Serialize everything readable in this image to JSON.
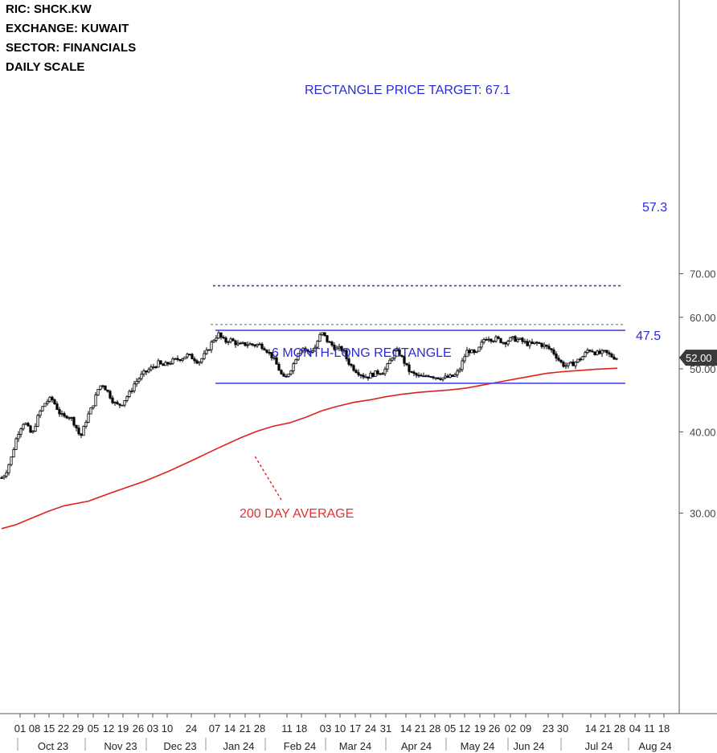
{
  "header": {
    "ric": "RIC:  SHCK.KW",
    "exchange": "EXCHANGE:  KUWAIT",
    "sector": "SECTOR:  FINANCIALS",
    "scale": "DAILY SCALE"
  },
  "annotations": {
    "target": "RECTANGLE PRICE TARGET: 67.1",
    "rect_label": "6 MONTH-LONG RECTANGLE",
    "ma_label": "200 DAY AVERAGE",
    "upper_value": "57.3",
    "lower_value": "47.5",
    "last_price": "52.00"
  },
  "colors": {
    "candle": "#000000",
    "pattern_line": "#4a4ae8",
    "target_line": "#3c3cd8",
    "moving_average": "#e02020",
    "grey_dotted": "#999999",
    "price_badge": "#3a3a3a"
  },
  "chart_data": {
    "type": "candlestick",
    "y_scale": "log",
    "ylim": [
      27,
      78
    ],
    "y_ticks": [
      {
        "value": 30,
        "label": "30.00"
      },
      {
        "value": 40,
        "label": "40.00"
      },
      {
        "value": 50,
        "label": "50.00"
      },
      {
        "value": 60,
        "label": "60.00"
      },
      {
        "value": 70,
        "label": "70.00"
      }
    ],
    "x_day_labels": [
      "01",
      "08",
      "15",
      "22",
      "29",
      "05",
      "12",
      "19",
      "26",
      "03",
      "10",
      "24",
      "07",
      "14",
      "21",
      "28",
      "11",
      "18",
      "03",
      "10",
      "17",
      "24",
      "31",
      "14",
      "21",
      "28",
      "05",
      "12",
      "19",
      "26",
      "02",
      "09",
      "23",
      "30",
      "14",
      "21",
      "28",
      "04",
      "11",
      "18"
    ],
    "x_month_labels": [
      "Oct 23",
      "Nov 23",
      "Dec 23",
      "Jan 24",
      "Feb 24",
      "Mar 24",
      "Apr 24",
      "May 24",
      "Jun 24",
      "Jul 24",
      "Aug 24"
    ],
    "close_path": [
      [
        0,
        34.0
      ],
      [
        5,
        34.6
      ],
      [
        12,
        36.5
      ],
      [
        18,
        39
      ],
      [
        22,
        40.3
      ],
      [
        28,
        41.5
      ],
      [
        33,
        40.5
      ],
      [
        38,
        39.5
      ],
      [
        43,
        41.5
      ],
      [
        48,
        43
      ],
      [
        55,
        44.5
      ],
      [
        62,
        45
      ],
      [
        66,
        44.2
      ],
      [
        72,
        42.8
      ],
      [
        77,
        42
      ],
      [
        82,
        42.5
      ],
      [
        88,
        41.8
      ],
      [
        93,
        40.6
      ],
      [
        98,
        39.2
      ],
      [
        102,
        40.5
      ],
      [
        106,
        42
      ],
      [
        110,
        43
      ],
      [
        115,
        44.5
      ],
      [
        120,
        46.5
      ],
      [
        125,
        47.5
      ],
      [
        130,
        46.5
      ],
      [
        136,
        45.2
      ],
      [
        140,
        44.3
      ],
      [
        145,
        43.9
      ],
      [
        150,
        44.3
      ],
      [
        155,
        45.2
      ],
      [
        160,
        46
      ],
      [
        165,
        47.4
      ],
      [
        170,
        48.2
      ],
      [
        175,
        49
      ],
      [
        180,
        49.5
      ],
      [
        185,
        50
      ],
      [
        190,
        50.5
      ],
      [
        195,
        51
      ],
      [
        200,
        50.5
      ],
      [
        205,
        50.8
      ],
      [
        210,
        51.2
      ],
      [
        215,
        51.5
      ],
      [
        220,
        51.8
      ],
      [
        225,
        52
      ],
      [
        230,
        52.5
      ],
      [
        235,
        52.2
      ],
      [
        240,
        51.8
      ],
      [
        245,
        51.2
      ],
      [
        250,
        52
      ],
      [
        255,
        53
      ],
      [
        260,
        54.5
      ],
      [
        265,
        55.8
      ],
      [
        270,
        56.5
      ],
      [
        274,
        55.6
      ],
      [
        278,
        55
      ],
      [
        283,
        55.5
      ],
      [
        288,
        55.1
      ],
      [
        292,
        54.7
      ],
      [
        296,
        54.3
      ],
      [
        300,
        54.5
      ],
      [
        305,
        54.6
      ],
      [
        310,
        54.5
      ],
      [
        315,
        54.4
      ],
      [
        320,
        54.5
      ],
      [
        324,
        54.2
      ],
      [
        328,
        53.8
      ],
      [
        332,
        53
      ],
      [
        336,
        52.3
      ],
      [
        340,
        51.3
      ],
      [
        344,
        50.2
      ],
      [
        348,
        49
      ],
      [
        351,
        48.3
      ],
      [
        354,
        48.5
      ],
      [
        358,
        49.6
      ],
      [
        362,
        50.5
      ],
      [
        366,
        52
      ],
      [
        370,
        53.5
      ],
      [
        374,
        54
      ],
      [
        378,
        53.5
      ],
      [
        382,
        52.8
      ],
      [
        386,
        53.3
      ],
      [
        390,
        54
      ],
      [
        394,
        55.5
      ],
      [
        398,
        56.8
      ],
      [
        402,
        56
      ],
      [
        406,
        55
      ],
      [
        410,
        54.5
      ],
      [
        414,
        54
      ],
      [
        418,
        53.5
      ],
      [
        422,
        53.8
      ],
      [
        426,
        53
      ],
      [
        430,
        51.5
      ],
      [
        435,
        50.5
      ],
      [
        440,
        49.8
      ],
      [
        445,
        49.3
      ],
      [
        450,
        48.8
      ],
      [
        455,
        48.6
      ],
      [
        460,
        49
      ],
      [
        465,
        49.2
      ],
      [
        470,
        49.5
      ],
      [
        475,
        49.5
      ],
      [
        480,
        50.5
      ],
      [
        485,
        52
      ],
      [
        490,
        53.3
      ],
      [
        495,
        52.7
      ],
      [
        500,
        51.5
      ],
      [
        505,
        50
      ],
      [
        510,
        49.2
      ],
      [
        515,
        48.9
      ],
      [
        520,
        48.6
      ],
      [
        525,
        48.5
      ],
      [
        530,
        49
      ],
      [
        535,
        48.8
      ],
      [
        540,
        48.6
      ],
      [
        545,
        48.5
      ],
      [
        550,
        48.4
      ],
      [
        555,
        48.5
      ],
      [
        560,
        48.6
      ],
      [
        565,
        48.9
      ],
      [
        570,
        50
      ],
      [
        575,
        52
      ],
      [
        580,
        53.5
      ],
      [
        585,
        53
      ],
      [
        590,
        52.5
      ],
      [
        595,
        54
      ],
      [
        600,
        55.5
      ],
      [
        605,
        56
      ],
      [
        610,
        55.5
      ],
      [
        615,
        55.6
      ],
      [
        620,
        55.3
      ],
      [
        625,
        54.9
      ],
      [
        630,
        55.3
      ],
      [
        635,
        55.6
      ],
      [
        640,
        55.5
      ],
      [
        645,
        55.3
      ],
      [
        650,
        54.9
      ],
      [
        655,
        54.6
      ],
      [
        660,
        54.5
      ],
      [
        665,
        54.8
      ],
      [
        670,
        54.6
      ],
      [
        675,
        54.2
      ],
      [
        680,
        53.8
      ],
      [
        685,
        53.3
      ],
      [
        690,
        52.3
      ],
      [
        695,
        51.2
      ],
      [
        700,
        50.6
      ],
      [
        705,
        50.6
      ],
      [
        710,
        50.9
      ],
      [
        715,
        51.3
      ],
      [
        720,
        51.8
      ],
      [
        725,
        52.5
      ],
      [
        730,
        53.6
      ],
      [
        735,
        53.3
      ],
      [
        740,
        52.8
      ],
      [
        745,
        52.8
      ],
      [
        750,
        53
      ],
      [
        755,
        52.6
      ],
      [
        760,
        52.2
      ],
      [
        765,
        52
      ],
      [
        768,
        52
      ]
    ],
    "moving_average_200d": [
      [
        2,
        28.4
      ],
      [
        20,
        28.8
      ],
      [
        40,
        29.5
      ],
      [
        60,
        30.2
      ],
      [
        80,
        30.8
      ],
      [
        110,
        31.3
      ],
      [
        140,
        32.3
      ],
      [
        180,
        33.6
      ],
      [
        210,
        34.8
      ],
      [
        240,
        36.2
      ],
      [
        270,
        37.7
      ],
      [
        300,
        39.2
      ],
      [
        320,
        40.1
      ],
      [
        340,
        40.8
      ],
      [
        360,
        41.3
      ],
      [
        380,
        42.1
      ],
      [
        400,
        43.1
      ],
      [
        420,
        43.8
      ],
      [
        440,
        44.4
      ],
      [
        460,
        44.8
      ],
      [
        480,
        45.3
      ],
      [
        500,
        45.7
      ],
      [
        520,
        46
      ],
      [
        540,
        46.2
      ],
      [
        560,
        46.4
      ],
      [
        580,
        46.7
      ],
      [
        600,
        47.2
      ],
      [
        620,
        47.7
      ],
      [
        640,
        48.2
      ],
      [
        660,
        48.7
      ],
      [
        680,
        49.2
      ],
      [
        700,
        49.5
      ],
      [
        720,
        49.7
      ],
      [
        740,
        49.9
      ],
      [
        768,
        50.1
      ]
    ],
    "series": [
      {
        "name": "200 DAY AVERAGE",
        "kind": "line"
      },
      {
        "name": "57.3",
        "kind": "horizontal-line",
        "value": 57.3
      },
      {
        "name": "47.5",
        "kind": "horizontal-line",
        "value": 47.5
      },
      {
        "name": "RECTANGLE PRICE TARGET: 67.1",
        "kind": "dotted-line",
        "value": 67.1
      },
      {
        "kind": "dotted-line",
        "value": 58.5
      }
    ]
  }
}
